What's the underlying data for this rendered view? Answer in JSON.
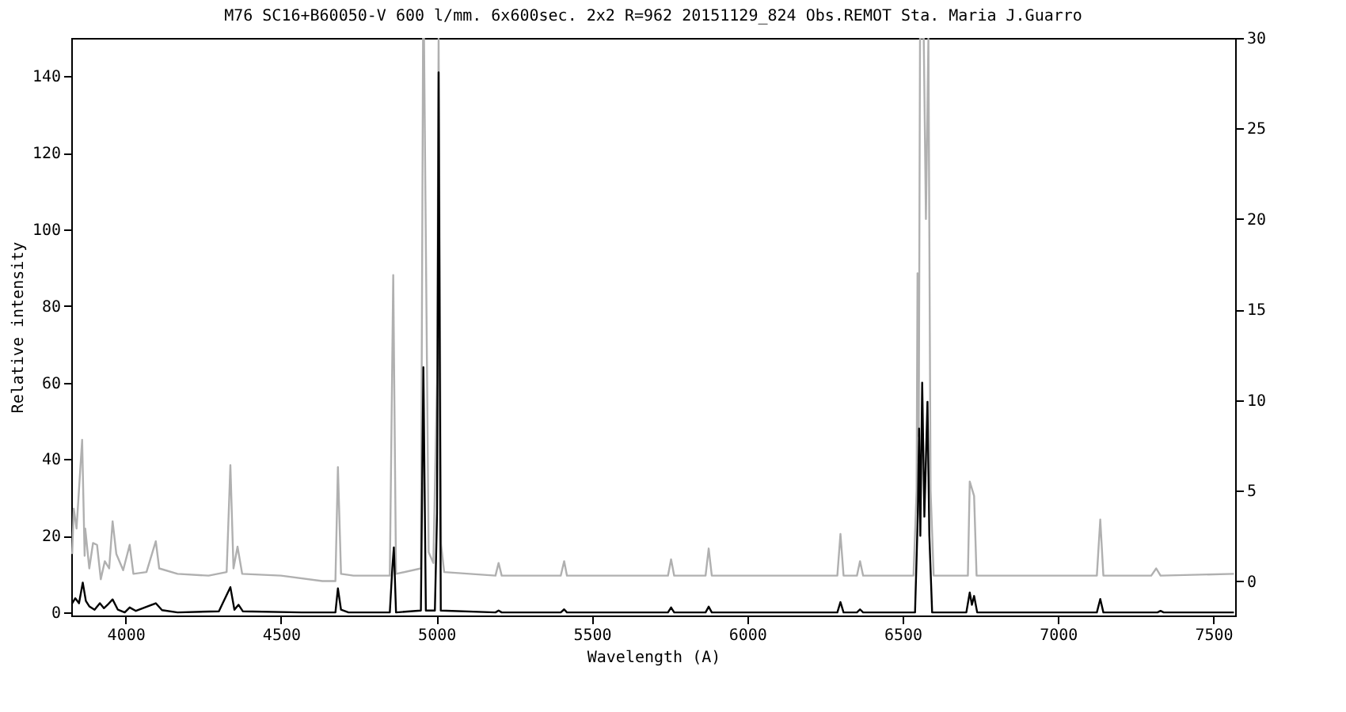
{
  "chart_data": {
    "type": "line",
    "title": "M76  SC16+B60050-V 600 l/mm. 6x600sec. 2x2 R=962 20151129_824 Obs.REMOT Sta. Maria  J.Guarro",
    "xlabel": "Wavelength (A)",
    "ylabel": "Relative intensity",
    "xlim": [
      3825,
      7570
    ],
    "xticks": [
      4000,
      4500,
      5000,
      5500,
      6000,
      6500,
      7000,
      7500
    ],
    "ylim": [
      -0.8,
      150
    ],
    "yticks": [
      0,
      20,
      40,
      60,
      80,
      100,
      120,
      140
    ],
    "y2lim": [
      -1.9,
      30
    ],
    "y2ticks": [
      0,
      5,
      10,
      15,
      20,
      25,
      30
    ],
    "grid": false,
    "marker": "none",
    "line_style": "solid",
    "series": [
      {
        "color": "#b0b0b0",
        "axis": "y2",
        "x": [
          3828,
          3833,
          3842,
          3860,
          3868,
          3870,
          3883,
          3895,
          3908,
          3920,
          3933,
          3947,
          3958,
          3970,
          3992,
          4013,
          4025,
          4067,
          4097,
          4108,
          4167,
          4267,
          4325,
          4337,
          4347,
          4360,
          4375,
          4500,
          4633,
          4675,
          4683,
          4693,
          4733,
          4850,
          4861,
          4870,
          4950,
          4957,
          4960,
          4975,
          4990,
          5002,
          5007,
          5015,
          5025,
          5190,
          5200,
          5210,
          5400,
          5411,
          5420,
          5745,
          5755,
          5765,
          5866,
          5876,
          5886,
          6290,
          6300,
          6310,
          6353,
          6363,
          6373,
          6535,
          6545,
          6548,
          6552,
          6556,
          6568,
          6575,
          6583,
          6590,
          6600,
          6710,
          6716,
          6730,
          6738,
          7125,
          7136,
          7146,
          7300,
          7316,
          7330,
          7566
        ],
        "values": [
          1.5,
          4.0,
          2.9,
          7.8,
          1.4,
          2.9,
          0.7,
          2.1,
          2.0,
          0.1,
          1.1,
          0.7,
          3.3,
          1.5,
          0.6,
          2.0,
          0.4,
          0.5,
          2.2,
          0.7,
          0.4,
          0.3,
          0.5,
          6.4,
          0.7,
          1.9,
          0.4,
          0.3,
          0.0,
          0.0,
          6.3,
          0.4,
          0.3,
          0.3,
          16.9,
          0.4,
          0.7,
          30,
          30,
          1.6,
          1.0,
          11,
          30,
          2.0,
          0.5,
          0.3,
          1.0,
          0.3,
          0.3,
          1.1,
          0.3,
          0.3,
          1.2,
          0.3,
          0.3,
          1.8,
          0.3,
          0.3,
          2.6,
          0.3,
          0.3,
          1.1,
          0.3,
          0.3,
          5,
          17,
          8,
          30,
          30,
          20,
          30,
          5,
          0.3,
          0.3,
          5.5,
          4.7,
          0.3,
          0.3,
          3.4,
          0.3,
          0.3,
          0.7,
          0.3,
          0.4
        ]
      },
      {
        "color": "#000000",
        "x": [
          3828,
          3838,
          3850,
          3862,
          3872,
          3883,
          3900,
          3917,
          3930,
          3942,
          3958,
          3975,
          3997,
          4013,
          4033,
          4097,
          4117,
          4167,
          4300,
          4337,
          4350,
          4363,
          4377,
          4567,
          4675,
          4683,
          4693,
          4717,
          4850,
          4858,
          4863,
          4870,
          4950,
          4958,
          4966,
          4995,
          5002,
          5007,
          5014,
          5190,
          5200,
          5210,
          5400,
          5411,
          5420,
          5745,
          5755,
          5765,
          5866,
          5876,
          5886,
          6290,
          6300,
          6310,
          6353,
          6363,
          6373,
          6540,
          6546,
          6549,
          6553,
          6557,
          6563,
          6570,
          6580,
          6586,
          6595,
          6705,
          6716,
          6723,
          6730,
          6740,
          7125,
          7136,
          7146,
          7320,
          7330,
          7340,
          7566
        ],
        "values": [
          2.4,
          3.7,
          2.4,
          7.8,
          3.0,
          1.6,
          0.7,
          2.4,
          1.1,
          2.0,
          3.4,
          0.7,
          0.0,
          1.3,
          0.4,
          2.4,
          0.6,
          0.0,
          0.3,
          6.6,
          0.7,
          2.0,
          0.3,
          0.0,
          0.0,
          6.3,
          0.7,
          0.0,
          0.0,
          11.5,
          17,
          0.0,
          0.5,
          64,
          0.5,
          0.5,
          26,
          141,
          0.5,
          0.0,
          0.5,
          0.0,
          0.0,
          0.8,
          0.0,
          0.0,
          1.3,
          0.0,
          0.0,
          1.5,
          0.0,
          0.0,
          2.7,
          0.0,
          0.0,
          0.8,
          0.0,
          0.0,
          17,
          26,
          48,
          20,
          60,
          25,
          55,
          20,
          0.0,
          0.0,
          5.2,
          2.0,
          4.3,
          0.0,
          0.0,
          3.5,
          0.0,
          0.0,
          0.4,
          0.0,
          0.0
        ]
      }
    ]
  }
}
